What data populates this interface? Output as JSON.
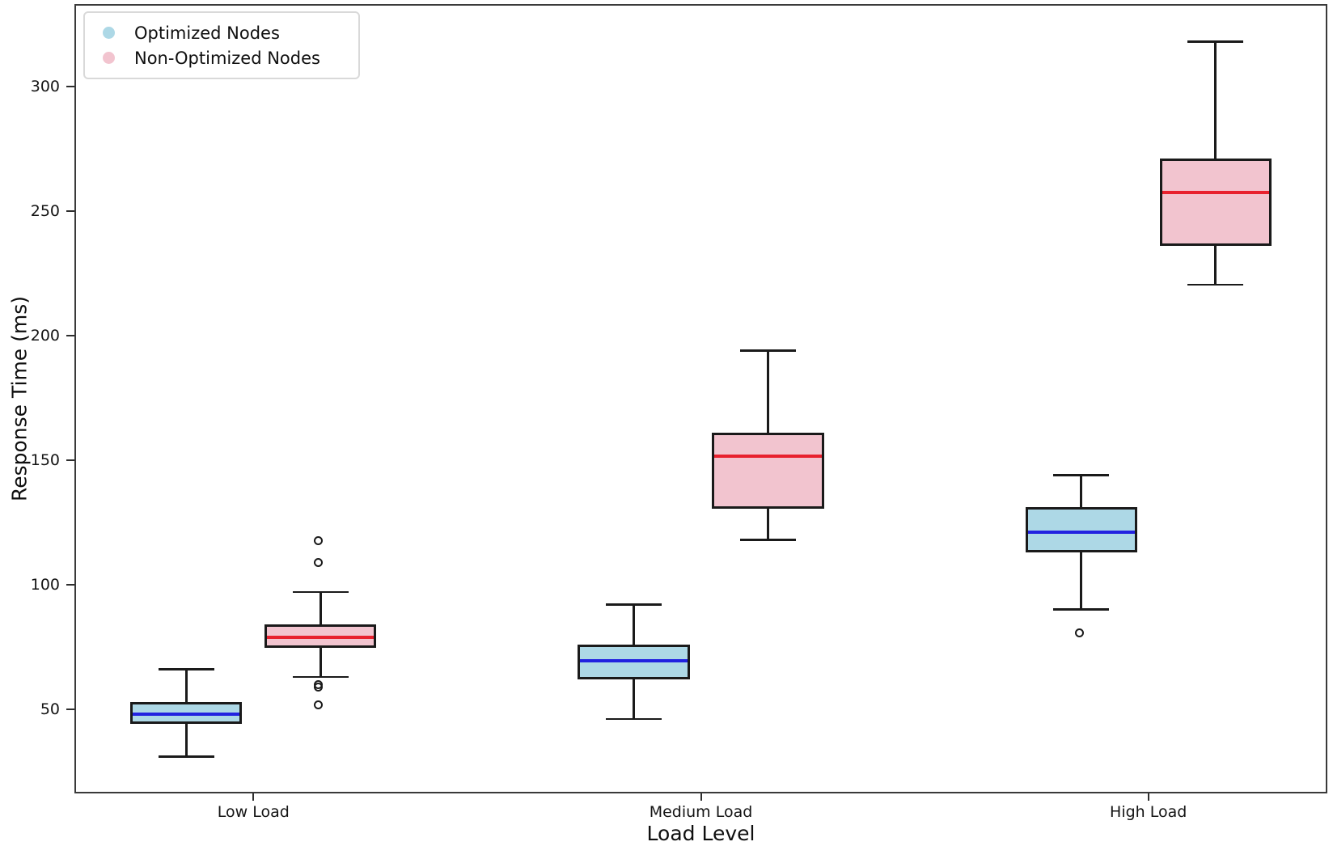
{
  "figure": {
    "background": "#ffffff",
    "frame_color": "#3a3a3a",
    "line_color": "#1a1a1a"
  },
  "chart_data": {
    "type": "boxplot",
    "title": "",
    "xlabel": "Load Level",
    "ylabel": "Response Time (ms)",
    "categories": [
      "Low Load",
      "Medium Load",
      "High Load"
    ],
    "y_ticks": [
      50,
      100,
      150,
      200,
      250,
      300
    ],
    "ylim": [
      16,
      333
    ],
    "grid": false,
    "legend_position": "upper-left",
    "series": [
      {
        "name": "Optimized Nodes",
        "fill_color": "#ADD8E6",
        "median_color": "#2222E0",
        "boxes": [
          {
            "category": "Low Load",
            "whisker_low": 31,
            "q1": 44,
            "median": 48,
            "q3": 53,
            "whisker_high": 66,
            "outliers": []
          },
          {
            "category": "Medium Load",
            "whisker_low": 46,
            "q1": 62,
            "median": 69.5,
            "q3": 76,
            "whisker_high": 92,
            "outliers": []
          },
          {
            "category": "High Load",
            "whisker_low": 90,
            "q1": 113,
            "median": 121,
            "q3": 131,
            "whisker_high": 144,
            "outliers": [
              80
            ]
          }
        ]
      },
      {
        "name": "Non-Optimized Nodes",
        "fill_color": "#F2C4CF",
        "median_color": "#E8212E",
        "boxes": [
          {
            "category": "Low Load",
            "whisker_low": 63,
            "q1": 74.5,
            "median": 79,
            "q3": 84,
            "whisker_high": 97,
            "outliers": [
              117,
              108,
              59,
              58,
              51
            ]
          },
          {
            "category": "Medium Load",
            "whisker_low": 118,
            "q1": 130.5,
            "median": 151.5,
            "q3": 161,
            "whisker_high": 194,
            "outliers": []
          },
          {
            "category": "High Load",
            "whisker_low": 220.5,
            "q1": 236,
            "median": 257.5,
            "q3": 271,
            "whisker_high": 318,
            "outliers": []
          }
        ]
      }
    ]
  }
}
